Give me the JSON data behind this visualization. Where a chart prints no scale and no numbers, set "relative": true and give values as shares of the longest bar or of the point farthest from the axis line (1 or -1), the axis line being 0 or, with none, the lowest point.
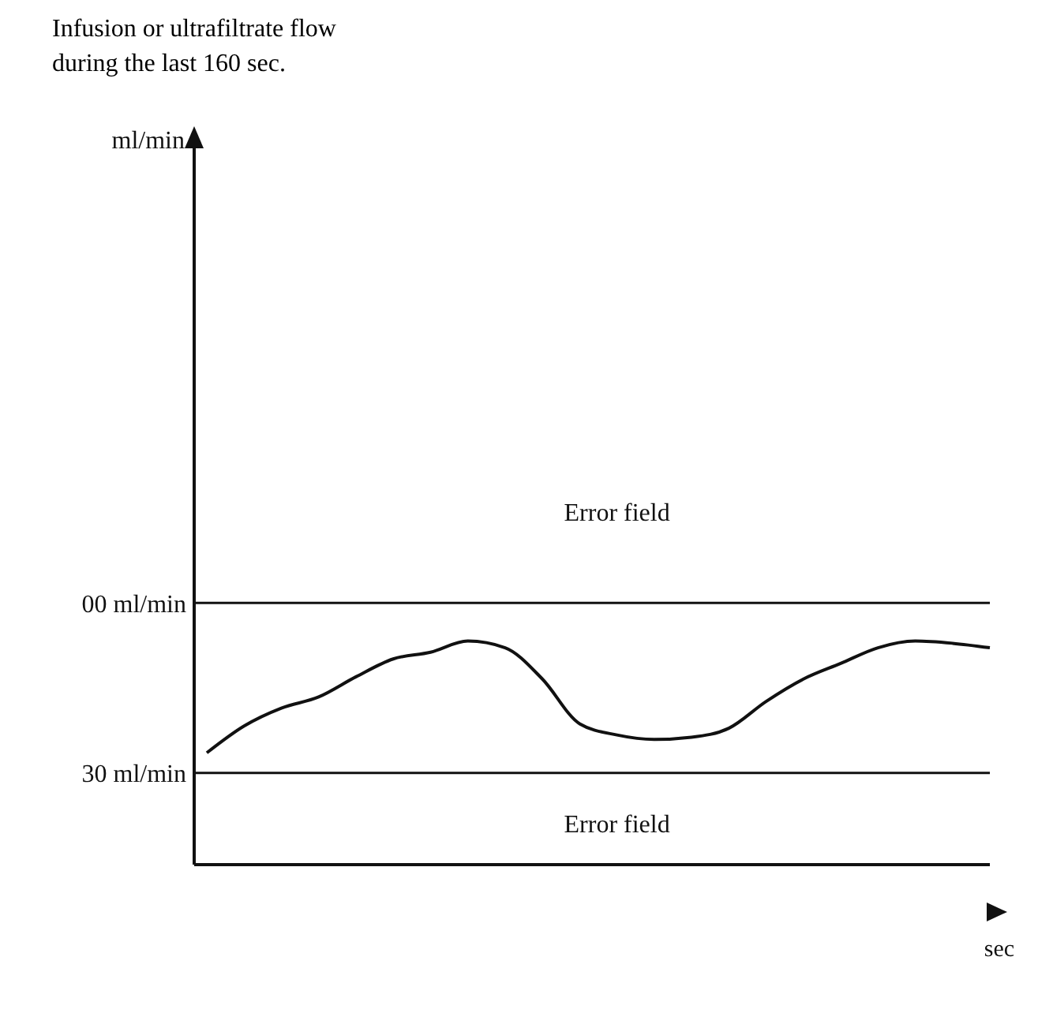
{
  "chart_data": {
    "type": "line",
    "title": "Infusion or ultrafiltrate flow\nduring the last 160 sec.",
    "xlabel": "sec",
    "relative": true,
    "categories": [
      null,
      null,
      null,
      null,
      null,
      null,
      null,
      null,
      null,
      null,
      null,
      null,
      null,
      null,
      null,
      null,
      null,
      null,
      null,
      null,
      null,
      null
    ],
    "series": [
      {
        "color": "#111111",
        "values": [
          0.5,
          0.62,
          0.7,
          0.75,
          0.84,
          0.92,
          0.95,
          1,
          0.97,
          0.83,
          0.63,
          0.58,
          0.56,
          0.57,
          0.61,
          0.73,
          0.83,
          0.9,
          0.97,
          1,
          0.99,
          0.97
        ]
      }
    ],
    "ref_lines": [
      {
        "axis": "y",
        "value": 1.17,
        "label": "00 ml/min",
        "color": "#111111"
      },
      {
        "axis": "y",
        "value": 0.41,
        "label": "30 ml/min",
        "color": "#111111"
      }
    ],
    "annotations": [
      "ml/min",
      "Error field",
      "Error field"
    ],
    "marker": "none",
    "line_style": "solid"
  }
}
